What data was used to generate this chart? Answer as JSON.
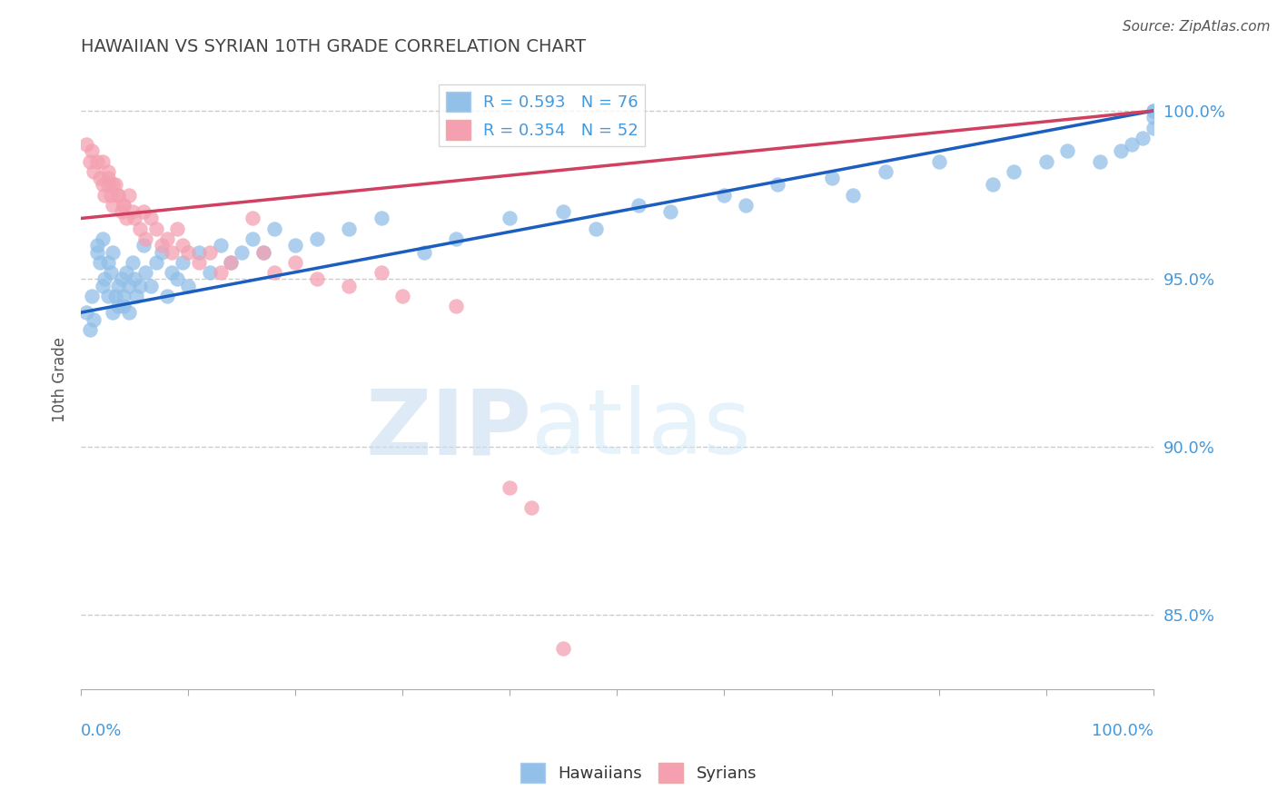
{
  "title": "HAWAIIAN VS SYRIAN 10TH GRADE CORRELATION CHART",
  "source": "Source: ZipAtlas.com",
  "ylabel": "10th Grade",
  "legend_hawaiians": "Hawaiians",
  "legend_syrians": "Syrians",
  "R_hawaiians": 0.593,
  "N_hawaiians": 76,
  "R_syrians": 0.354,
  "N_syrians": 52,
  "color_hawaiians": "#92C0E8",
  "color_syrians": "#F4A0B0",
  "color_trendline_hawaiians": "#1B5EC0",
  "color_trendline_syrians": "#D04060",
  "ytick_labels": [
    "85.0%",
    "90.0%",
    "95.0%",
    "100.0%"
  ],
  "ytick_values": [
    0.85,
    0.9,
    0.95,
    1.0
  ],
  "xlim": [
    0.0,
    1.0
  ],
  "ylim": [
    0.828,
    1.012
  ],
  "hawaiians_x": [
    0.005,
    0.008,
    0.01,
    0.012,
    0.015,
    0.015,
    0.018,
    0.02,
    0.02,
    0.022,
    0.025,
    0.025,
    0.028,
    0.03,
    0.03,
    0.032,
    0.035,
    0.035,
    0.038,
    0.04,
    0.04,
    0.042,
    0.045,
    0.045,
    0.048,
    0.05,
    0.052,
    0.055,
    0.058,
    0.06,
    0.065,
    0.07,
    0.075,
    0.08,
    0.085,
    0.09,
    0.095,
    0.1,
    0.11,
    0.12,
    0.13,
    0.14,
    0.15,
    0.16,
    0.17,
    0.18,
    0.2,
    0.22,
    0.25,
    0.28,
    0.32,
    0.35,
    0.4,
    0.45,
    0.48,
    0.52,
    0.55,
    0.6,
    0.62,
    0.65,
    0.7,
    0.72,
    0.75,
    0.8,
    0.85,
    0.87,
    0.9,
    0.92,
    0.95,
    0.97,
    0.98,
    0.99,
    1.0,
    1.0,
    1.0,
    1.0
  ],
  "hawaiians_y": [
    0.94,
    0.935,
    0.945,
    0.938,
    0.96,
    0.958,
    0.955,
    0.962,
    0.948,
    0.95,
    0.955,
    0.945,
    0.952,
    0.94,
    0.958,
    0.945,
    0.948,
    0.942,
    0.95,
    0.945,
    0.942,
    0.952,
    0.948,
    0.94,
    0.955,
    0.95,
    0.945,
    0.948,
    0.96,
    0.952,
    0.948,
    0.955,
    0.958,
    0.945,
    0.952,
    0.95,
    0.955,
    0.948,
    0.958,
    0.952,
    0.96,
    0.955,
    0.958,
    0.962,
    0.958,
    0.965,
    0.96,
    0.962,
    0.965,
    0.968,
    0.958,
    0.962,
    0.968,
    0.97,
    0.965,
    0.972,
    0.97,
    0.975,
    0.972,
    0.978,
    0.98,
    0.975,
    0.982,
    0.985,
    0.978,
    0.982,
    0.985,
    0.988,
    0.985,
    0.988,
    0.99,
    0.992,
    0.995,
    0.998,
    1.0,
    1.0
  ],
  "syrians_x": [
    0.005,
    0.008,
    0.01,
    0.012,
    0.015,
    0.018,
    0.02,
    0.022,
    0.025,
    0.025,
    0.028,
    0.03,
    0.032,
    0.035,
    0.038,
    0.04,
    0.042,
    0.045,
    0.048,
    0.05,
    0.055,
    0.058,
    0.06,
    0.065,
    0.07,
    0.075,
    0.08,
    0.085,
    0.09,
    0.095,
    0.1,
    0.11,
    0.12,
    0.13,
    0.14,
    0.16,
    0.17,
    0.18,
    0.2,
    0.22,
    0.25,
    0.28,
    0.3,
    0.35,
    0.4,
    0.42,
    0.45,
    0.02,
    0.025,
    0.03,
    0.035,
    0.04
  ],
  "syrians_y": [
    0.99,
    0.985,
    0.988,
    0.982,
    0.985,
    0.98,
    0.978,
    0.975,
    0.982,
    0.978,
    0.975,
    0.972,
    0.978,
    0.975,
    0.97,
    0.972,
    0.968,
    0.975,
    0.97,
    0.968,
    0.965,
    0.97,
    0.962,
    0.968,
    0.965,
    0.96,
    0.962,
    0.958,
    0.965,
    0.96,
    0.958,
    0.955,
    0.958,
    0.952,
    0.955,
    0.968,
    0.958,
    0.952,
    0.955,
    0.95,
    0.948,
    0.952,
    0.945,
    0.942,
    0.888,
    0.882,
    0.84,
    0.985,
    0.98,
    0.978,
    0.975,
    0.972
  ],
  "watermark_zip": "ZIP",
  "watermark_atlas": "atlas",
  "background_color": "#ffffff",
  "grid_color": "#CCCCCC",
  "axis_color": "#AAAAAA",
  "tick_color": "#4499DD",
  "title_color": "#444444"
}
